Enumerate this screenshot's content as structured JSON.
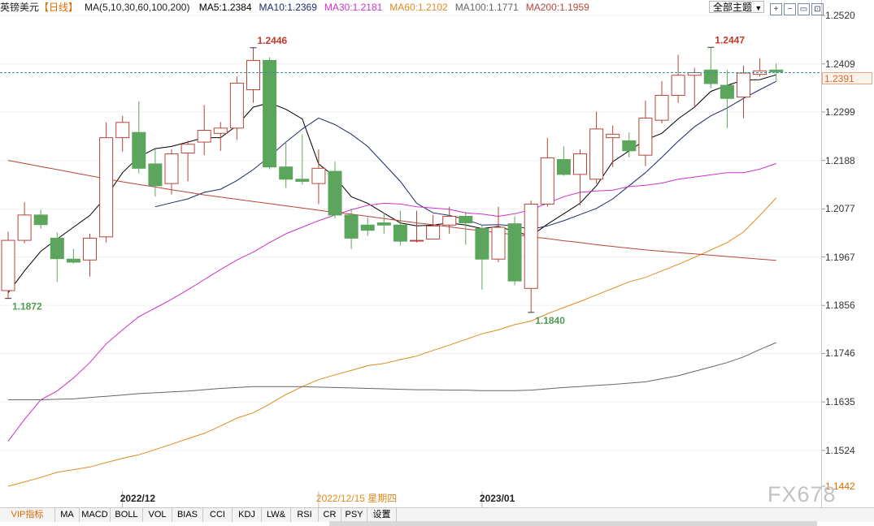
{
  "header": {
    "symbol": "英镑美元",
    "period": "【日线】",
    "ma_params": "MA(5,10,30,60,100,200)",
    "ma_values": [
      {
        "label": "MA5:1.2384",
        "color": "#000000"
      },
      {
        "label": "MA10:1.2369",
        "color": "#1a2a6c"
      },
      {
        "label": "MA30:1.2181",
        "color": "#cc33cc"
      },
      {
        "label": "MA60:1.2102",
        "color": "#e08a1e"
      },
      {
        "label": "MA100:1.1771",
        "color": "#666666"
      },
      {
        "label": "MA200:1.1959",
        "color": "#b8453a"
      }
    ],
    "theme_select": "全部主题",
    "tool_icons": [
      "zoom-in-icon",
      "zoom-out-icon",
      "restore-icon",
      "fullscreen-icon"
    ]
  },
  "current_price": "1.2391",
  "tabs": [
    "VIP指标",
    "MA",
    "MACD",
    "BOLL",
    "VOL",
    "BIAS",
    "CCI",
    "KDJ",
    "LW&",
    "RSI",
    "CR",
    "PSY",
    "设置"
  ],
  "watermark": "FX678",
  "colors": {
    "up": "#b8453a",
    "down": "#5ca55c",
    "price_line": "#3a8fa8",
    "grid": "#e6e6e6"
  },
  "chart_data": {
    "type": "candlestick",
    "y_ticks": [
      "1.2520",
      "1.2409",
      "1.2299",
      "1.2188",
      "1.2077",
      "1.1967",
      "1.1856",
      "1.1746",
      "1.1635",
      "1.1524",
      "1.1442"
    ],
    "ylim": [
      1.1442,
      1.252
    ],
    "x_labels": [
      {
        "text": "2022/12",
        "index": 7
      },
      {
        "text": "2022/12/15 星期四",
        "index": 19
      },
      {
        "text": "2023/01",
        "index": 29
      }
    ],
    "annotations": [
      {
        "text": "1.1872",
        "index": 0,
        "value": 1.1872,
        "type": "low"
      },
      {
        "text": "1.2446",
        "index": 15,
        "value": 1.2446,
        "type": "high"
      },
      {
        "text": "1.1840",
        "index": 32,
        "value": 1.184,
        "type": "low"
      },
      {
        "text": "1.2447",
        "index": 43,
        "value": 1.2447,
        "type": "high"
      }
    ],
    "candles": [
      {
        "o": 1.189,
        "h": 1.2025,
        "l": 1.1872,
        "c": 1.2005
      },
      {
        "o": 1.2005,
        "h": 1.2092,
        "l": 1.1998,
        "c": 1.2063
      },
      {
        "o": 1.2063,
        "h": 1.2075,
        "l": 1.2032,
        "c": 1.2041
      },
      {
        "o": 1.201,
        "h": 1.2023,
        "l": 1.191,
        "c": 1.1963
      },
      {
        "o": 1.1962,
        "h": 1.1985,
        "l": 1.1952,
        "c": 1.1955
      },
      {
        "o": 1.196,
        "h": 1.202,
        "l": 1.1922,
        "c": 1.201
      },
      {
        "o": 1.2013,
        "h": 1.2275,
        "l": 1.2,
        "c": 1.224
      },
      {
        "o": 1.224,
        "h": 1.229,
        "l": 1.2208,
        "c": 1.2275
      },
      {
        "o": 1.2252,
        "h": 1.2323,
        "l": 1.2158,
        "c": 1.217
      },
      {
        "o": 1.218,
        "h": 1.2213,
        "l": 1.2105,
        "c": 1.213
      },
      {
        "o": 1.2135,
        "h": 1.2213,
        "l": 1.211,
        "c": 1.2203
      },
      {
        "o": 1.2205,
        "h": 1.2233,
        "l": 1.214,
        "c": 1.2225
      },
      {
        "o": 1.223,
        "h": 1.2315,
        "l": 1.22,
        "c": 1.2257
      },
      {
        "o": 1.225,
        "h": 1.2276,
        "l": 1.221,
        "c": 1.2262
      },
      {
        "o": 1.2262,
        "h": 1.238,
        "l": 1.2235,
        "c": 1.2365
      },
      {
        "o": 1.235,
        "h": 1.2446,
        "l": 1.232,
        "c": 1.2417
      },
      {
        "o": 1.2417,
        "h": 1.2424,
        "l": 1.2168,
        "c": 1.2173
      },
      {
        "o": 1.2173,
        "h": 1.2232,
        "l": 1.2125,
        "c": 1.2145
      },
      {
        "o": 1.2145,
        "h": 1.2248,
        "l": 1.2133,
        "c": 1.214
      },
      {
        "o": 1.2135,
        "h": 1.2213,
        "l": 1.2088,
        "c": 1.217
      },
      {
        "o": 1.2163,
        "h": 1.2185,
        "l": 1.2055,
        "c": 1.2063
      },
      {
        "o": 1.2063,
        "h": 1.2077,
        "l": 1.1985,
        "c": 1.201
      },
      {
        "o": 1.204,
        "h": 1.2058,
        "l": 1.2015,
        "c": 1.2028
      },
      {
        "o": 1.2045,
        "h": 1.2068,
        "l": 1.202,
        "c": 1.204
      },
      {
        "o": 1.204,
        "h": 1.2073,
        "l": 1.1993,
        "c": 1.2003
      },
      {
        "o": 1.2005,
        "h": 1.2073,
        "l": 1.2,
        "c": 1.2005
      },
      {
        "o": 1.2008,
        "h": 1.2063,
        "l": 1.2008,
        "c": 1.2038
      },
      {
        "o": 1.204,
        "h": 1.2082,
        "l": 1.202,
        "c": 1.206
      },
      {
        "o": 1.206,
        "h": 1.207,
        "l": 1.1995,
        "c": 1.2045
      },
      {
        "o": 1.2032,
        "h": 1.204,
        "l": 1.1892,
        "c": 1.1962
      },
      {
        "o": 1.1962,
        "h": 1.2082,
        "l": 1.1955,
        "c": 1.2035
      },
      {
        "o": 1.2043,
        "h": 1.206,
        "l": 1.1902,
        "c": 1.1912
      },
      {
        "o": 1.1895,
        "h": 1.2096,
        "l": 1.184,
        "c": 1.2088
      },
      {
        "o": 1.2088,
        "h": 1.224,
        "l": 1.2082,
        "c": 1.2194
      },
      {
        "o": 1.219,
        "h": 1.222,
        "l": 1.2153,
        "c": 1.2156
      },
      {
        "o": 1.2156,
        "h": 1.2213,
        "l": 1.2085,
        "c": 1.2203
      },
      {
        "o": 1.2145,
        "h": 1.23,
        "l": 1.2135,
        "c": 1.226
      },
      {
        "o": 1.224,
        "h": 1.2268,
        "l": 1.2173,
        "c": 1.2248
      },
      {
        "o": 1.2233,
        "h": 1.2252,
        "l": 1.2195,
        "c": 1.221
      },
      {
        "o": 1.22,
        "h": 1.2325,
        "l": 1.2175,
        "c": 1.2285
      },
      {
        "o": 1.228,
        "h": 1.237,
        "l": 1.2273,
        "c": 1.2337
      },
      {
        "o": 1.2337,
        "h": 1.243,
        "l": 1.232,
        "c": 1.2383
      },
      {
        "o": 1.2383,
        "h": 1.24,
        "l": 1.231,
        "c": 1.2389
      },
      {
        "o": 1.2395,
        "h": 1.2447,
        "l": 1.2353,
        "c": 1.2364
      },
      {
        "o": 1.236,
        "h": 1.2395,
        "l": 1.2262,
        "c": 1.233
      },
      {
        "o": 1.2333,
        "h": 1.2405,
        "l": 1.2285,
        "c": 1.2388
      },
      {
        "o": 1.2385,
        "h": 1.2422,
        "l": 1.238,
        "c": 1.2393
      },
      {
        "o": 1.2395,
        "h": 1.241,
        "l": 1.237,
        "c": 1.2391
      }
    ],
    "series": [
      {
        "name": "MA5",
        "color": "#000000",
        "values": [
          1.1885,
          1.1935,
          1.198,
          1.2008,
          1.2035,
          1.2062,
          1.2105,
          1.216,
          1.2196,
          1.2215,
          1.222,
          1.223,
          1.224,
          1.224,
          1.2268,
          1.231,
          1.232,
          1.2305,
          1.2283,
          1.218,
          1.215,
          1.2105,
          1.209,
          1.2067,
          1.2045,
          1.2038,
          1.204,
          1.2045,
          1.204,
          1.2032,
          1.2037,
          1.2025,
          1.2015,
          1.2042,
          1.2066,
          1.209,
          1.213,
          1.2185,
          1.221,
          1.2235,
          1.225,
          1.2283,
          1.231,
          1.2346,
          1.236,
          1.2372,
          1.2373,
          1.2384
        ]
      },
      {
        "name": "MA10",
        "color": "#1a2a6c",
        "values": [
          null,
          null,
          null,
          null,
          null,
          null,
          null,
          null,
          null,
          1.2082,
          1.2091,
          1.21,
          1.2115,
          1.2122,
          1.2142,
          1.2167,
          1.2197,
          1.223,
          1.226,
          1.2285,
          1.227,
          1.2248,
          1.222,
          1.218,
          1.214,
          1.209,
          1.2068,
          1.2062,
          1.2053,
          1.204,
          1.2041,
          1.2038,
          1.203,
          1.2038,
          1.205,
          1.2064,
          1.2078,
          1.21,
          1.213,
          1.216,
          1.2195,
          1.2232,
          1.2265,
          1.229,
          1.2308,
          1.233,
          1.235,
          1.2369
        ]
      },
      {
        "name": "MA30",
        "color": "#cc33cc",
        "values": [
          1.1545,
          1.1595,
          1.164,
          1.166,
          1.169,
          1.1725,
          1.1768,
          1.18,
          1.183,
          1.185,
          1.187,
          1.1892,
          1.1915,
          1.1938,
          1.196,
          1.1978,
          1.2,
          1.202,
          1.2035,
          1.205,
          1.2063,
          1.2075,
          1.2085,
          1.209,
          1.2088,
          1.2082,
          1.2079,
          1.2076,
          1.2068,
          1.2065,
          1.206,
          1.2066,
          1.2075,
          1.209,
          1.2105,
          1.2115,
          1.2118,
          1.212,
          1.2128,
          1.2131,
          1.2136,
          1.2145,
          1.215,
          1.2155,
          1.216,
          1.216,
          1.2168,
          1.2181
        ]
      },
      {
        "name": "MA60",
        "color": "#e08a1e",
        "values": [
          1.1442,
          1.1452,
          1.1462,
          1.1474,
          1.148,
          1.1486,
          1.1496,
          1.1506,
          1.1514,
          1.1526,
          1.1538,
          1.1551,
          1.1563,
          1.158,
          1.1598,
          1.161,
          1.163,
          1.1652,
          1.167,
          1.1686,
          1.1697,
          1.1707,
          1.1718,
          1.1723,
          1.1732,
          1.174,
          1.1753,
          1.1765,
          1.1778,
          1.1791,
          1.18,
          1.1812,
          1.182,
          1.1837,
          1.1851,
          1.1865,
          1.188,
          1.1895,
          1.191,
          1.192,
          1.1935,
          1.195,
          1.1966,
          1.1983,
          1.2,
          1.2024,
          1.2062,
          1.2102
        ]
      },
      {
        "name": "MA100",
        "color": "#666666",
        "values": [
          1.164,
          1.164,
          1.164,
          1.1641,
          1.1642,
          1.1645,
          1.1648,
          1.1651,
          1.1654,
          1.1656,
          1.1658,
          1.166,
          1.1663,
          1.1666,
          1.1668,
          1.167,
          1.167,
          1.167,
          1.167,
          1.1669,
          1.1668,
          1.1667,
          1.1666,
          1.1665,
          1.1664,
          1.1663,
          1.1663,
          1.1662,
          1.1662,
          1.1661,
          1.1661,
          1.1661,
          1.1662,
          1.1665,
          1.1668,
          1.167,
          1.1673,
          1.1675,
          1.1678,
          1.1681,
          1.1688,
          1.1695,
          1.1705,
          1.1715,
          1.1725,
          1.1738,
          1.1755,
          1.1771
        ]
      },
      {
        "name": "MA200",
        "color": "#b8453a",
        "values": [
          1.2188,
          1.2181,
          1.2174,
          1.2167,
          1.216,
          1.2153,
          1.2146,
          1.2139,
          1.2133,
          1.2127,
          1.2121,
          1.2115,
          1.2109,
          1.2104,
          1.2099,
          1.2094,
          1.2089,
          1.2084,
          1.2079,
          1.2074,
          1.2069,
          1.2065,
          1.206,
          1.2055,
          1.205,
          1.2045,
          1.2041,
          1.2036,
          1.2031,
          1.2027,
          1.2022,
          1.2018,
          1.2013,
          1.2009,
          1.2004,
          1.2,
          1.1995,
          1.1991,
          1.1987,
          1.1983,
          1.198,
          1.1977,
          1.1974,
          1.1971,
          1.1968,
          1.1965,
          1.1962,
          1.1959
        ]
      }
    ]
  }
}
